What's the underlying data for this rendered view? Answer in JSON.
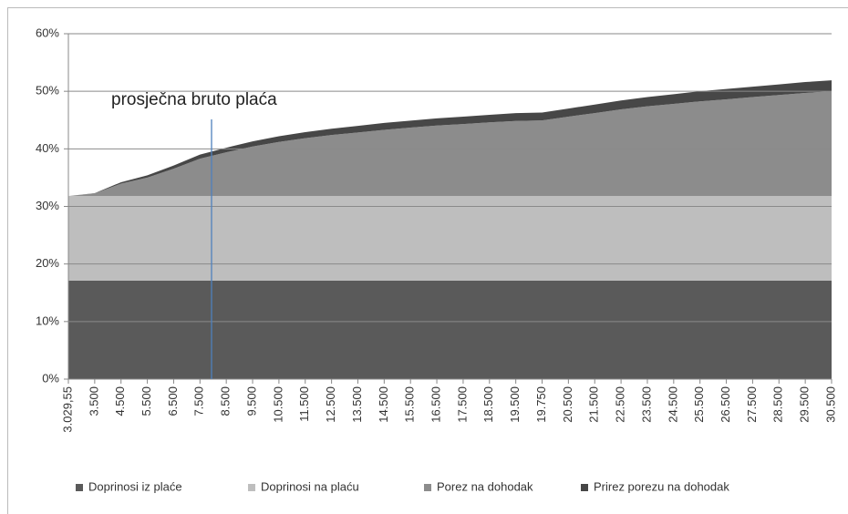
{
  "chart_data": {
    "type": "stacked-area",
    "categories": [
      "3.029,55",
      "3.500",
      "4.500",
      "5.500",
      "6.500",
      "7.500",
      "8.500",
      "9.500",
      "10.500",
      "11.500",
      "12.500",
      "13.500",
      "14.500",
      "15.500",
      "16.500",
      "17.500",
      "18.500",
      "19.500",
      "19.750",
      "20.500",
      "21.500",
      "22.500",
      "23.500",
      "24.500",
      "25.500",
      "26.500",
      "27.500",
      "28.500",
      "29.500",
      "30.500"
    ],
    "series": [
      {
        "name": "Doprinosi iz plaće",
        "color": "#5a5a5a",
        "values": [
          17.1,
          17.1,
          17.1,
          17.1,
          17.1,
          17.1,
          17.1,
          17.1,
          17.1,
          17.1,
          17.1,
          17.1,
          17.1,
          17.1,
          17.1,
          17.1,
          17.1,
          17.1,
          17.1,
          17.1,
          17.1,
          17.1,
          17.1,
          17.1,
          17.1,
          17.1,
          17.1,
          17.1,
          17.1,
          17.1
        ]
      },
      {
        "name": "Doprinosi na plaću",
        "color": "#bebebe",
        "values": [
          14.7,
          14.7,
          14.7,
          14.7,
          14.7,
          14.7,
          14.7,
          14.7,
          14.7,
          14.7,
          14.7,
          14.7,
          14.7,
          14.7,
          14.7,
          14.7,
          14.7,
          14.7,
          14.7,
          14.7,
          14.7,
          14.7,
          14.7,
          14.7,
          14.7,
          14.7,
          14.7,
          14.7,
          14.7,
          14.7
        ]
      },
      {
        "name": "Porez na dohodak",
        "color": "#8c8c8c",
        "values": [
          0,
          0.45,
          2.15,
          3.2,
          4.75,
          6.5,
          7.6,
          8.6,
          9.4,
          10.05,
          10.6,
          11.05,
          11.5,
          11.9,
          12.25,
          12.5,
          12.8,
          13.05,
          13.15,
          13.8,
          14.4,
          15.05,
          15.6,
          16.0,
          16.45,
          16.8,
          17.2,
          17.55,
          17.9,
          18.2
        ]
      },
      {
        "name": "Prirez porezu na dohodak",
        "color": "#474747",
        "values": [
          0,
          0.05,
          0.25,
          0.4,
          0.55,
          0.7,
          0.8,
          0.9,
          1.0,
          1.05,
          1.1,
          1.15,
          1.2,
          1.2,
          1.25,
          1.3,
          1.3,
          1.35,
          1.35,
          1.4,
          1.5,
          1.55,
          1.6,
          1.7,
          1.75,
          1.8,
          1.8,
          1.85,
          1.9,
          1.9
        ]
      }
    ],
    "ylim": [
      0,
      60
    ],
    "yticks": [
      {
        "value": 0,
        "label": "0%"
      },
      {
        "value": 10,
        "label": "10%"
      },
      {
        "value": 20,
        "label": "20%"
      },
      {
        "value": 30,
        "label": "30%"
      },
      {
        "value": 40,
        "label": "40%"
      },
      {
        "value": 50,
        "label": "50%"
      },
      {
        "value": 60,
        "label": "60%"
      }
    ],
    "grid": true,
    "annotation": "prosječna bruto plaća",
    "legend": "bottom"
  }
}
